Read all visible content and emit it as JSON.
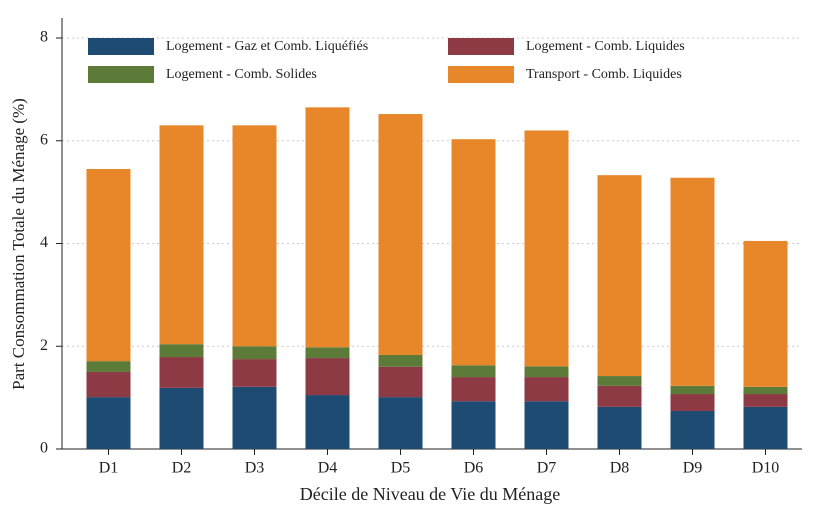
{
  "chart_data": {
    "type": "stacked_bar",
    "xlabel": "Décile de Niveau de Vie du Ménage",
    "ylabel": "Part Consommation Totale du Ménage (%)",
    "categories": [
      "D1",
      "D2",
      "D3",
      "D4",
      "D5",
      "D6",
      "D7",
      "D8",
      "D9",
      "D10"
    ],
    "series": [
      {
        "name": "Logement - Gaz et Comb. Liquéfiés",
        "color": "#1e4b72",
        "values": [
          1.01,
          1.19,
          1.21,
          1.05,
          1.01,
          0.93,
          0.93,
          0.82,
          0.74,
          0.82
        ]
      },
      {
        "name": "Logement - Comb. Liquides",
        "color": "#8e3a45",
        "values": [
          0.49,
          0.6,
          0.54,
          0.72,
          0.59,
          0.47,
          0.47,
          0.41,
          0.33,
          0.25
        ]
      },
      {
        "name": "Logement - Comb. Solides",
        "color": "#5c7a38",
        "values": [
          0.21,
          0.25,
          0.25,
          0.21,
          0.23,
          0.23,
          0.21,
          0.19,
          0.16,
          0.14
        ]
      },
      {
        "name": "Transport - Comb. Liquides",
        "color": "#e8862a",
        "values": [
          3.74,
          4.26,
          4.3,
          4.67,
          4.69,
          4.4,
          4.59,
          3.91,
          4.05,
          2.84
        ]
      }
    ],
    "ylim": [
      0,
      8
    ],
    "yticks": [
      0,
      2,
      4,
      6,
      8
    ],
    "grid": true
  }
}
